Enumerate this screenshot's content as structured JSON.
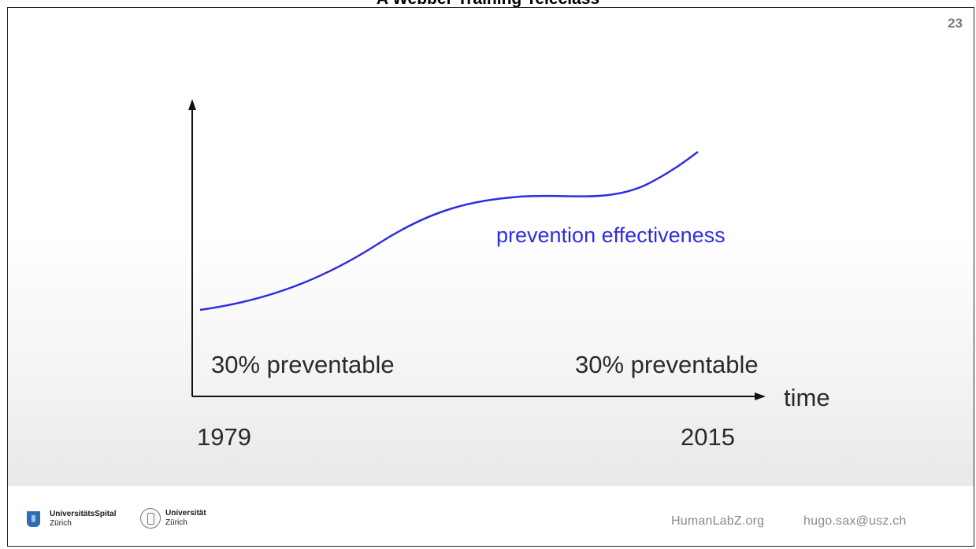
{
  "header": {
    "title": "A Webber Training Teleclass"
  },
  "slide": {
    "number": "23",
    "curve_label": "prevention effectiveness",
    "left_label": "30% preventable",
    "right_label": "30% preventable",
    "x_axis_label": "time",
    "start_year": "1979",
    "end_year": "2015",
    "curve_color": "#2e2ee0"
  },
  "footer": {
    "usz_name": "UniversitätsSpital",
    "usz_city": "Zürich",
    "uzh_name": "Universität",
    "uzh_city": "Zürich",
    "website": "HumanLabZ.org",
    "email": "hugo.sax@usz.ch"
  }
}
